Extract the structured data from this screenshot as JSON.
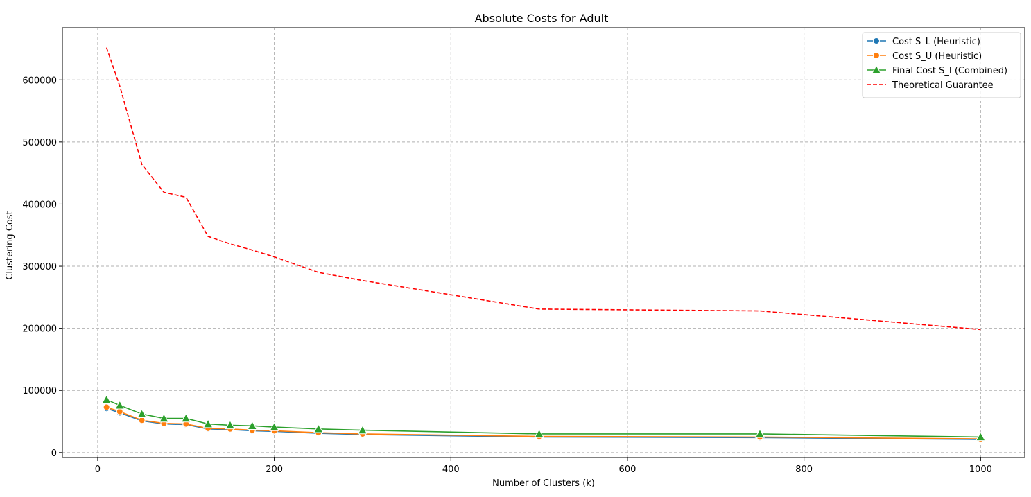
{
  "chart_data": {
    "type": "line",
    "title": "Absolute Costs for Adult",
    "xlabel": "Number of Clusters (k)",
    "ylabel": "Clustering Cost",
    "xlim": [
      -40,
      1050
    ],
    "ylim": [
      -8000,
      684000
    ],
    "xticks": [
      0,
      200,
      400,
      600,
      800,
      1000
    ],
    "xtick_labels": [
      "0",
      "200",
      "400",
      "600",
      "800",
      "1000"
    ],
    "yticks": [
      0,
      100000,
      200000,
      300000,
      400000,
      500000,
      600000
    ],
    "ytick_labels": [
      "0",
      "100000",
      "200000",
      "300000",
      "400000",
      "500000",
      "600000"
    ],
    "grid": true,
    "legend_position": "top-right",
    "x": [
      10,
      25,
      50,
      75,
      100,
      125,
      150,
      175,
      200,
      250,
      300,
      500,
      750,
      1000
    ],
    "series": [
      {
        "name": "Cost S_L (Heuristic)",
        "color": "#1f77b4",
        "marker": "circle",
        "line": "solid",
        "values": [
          71000,
          64000,
          51000,
          46000,
          45000,
          38000,
          37000,
          35000,
          34000,
          31000,
          29000,
          25000,
          24000,
          21000
        ]
      },
      {
        "name": "Cost S_U (Heuristic)",
        "color": "#ff7f0e",
        "marker": "circle",
        "line": "solid",
        "values": [
          73000,
          66000,
          52000,
          47000,
          46000,
          39000,
          38000,
          36000,
          35000,
          32000,
          30000,
          26000,
          25000,
          22000
        ]
      },
      {
        "name": "Final Cost S_I (Combined)",
        "color": "#2ca02c",
        "marker": "triangle",
        "line": "solid",
        "values": [
          85000,
          76000,
          62000,
          55000,
          55000,
          46000,
          44000,
          43000,
          41000,
          38000,
          36000,
          30000,
          30000,
          25000
        ]
      },
      {
        "name": "Theoretical Guarantee",
        "color": "#ff0000",
        "marker": "none",
        "line": "dashed",
        "values": [
          652000,
          590000,
          464000,
          419000,
          411000,
          348000,
          336000,
          326000,
          315000,
          290000,
          277000,
          231000,
          228000,
          198000
        ]
      }
    ]
  }
}
